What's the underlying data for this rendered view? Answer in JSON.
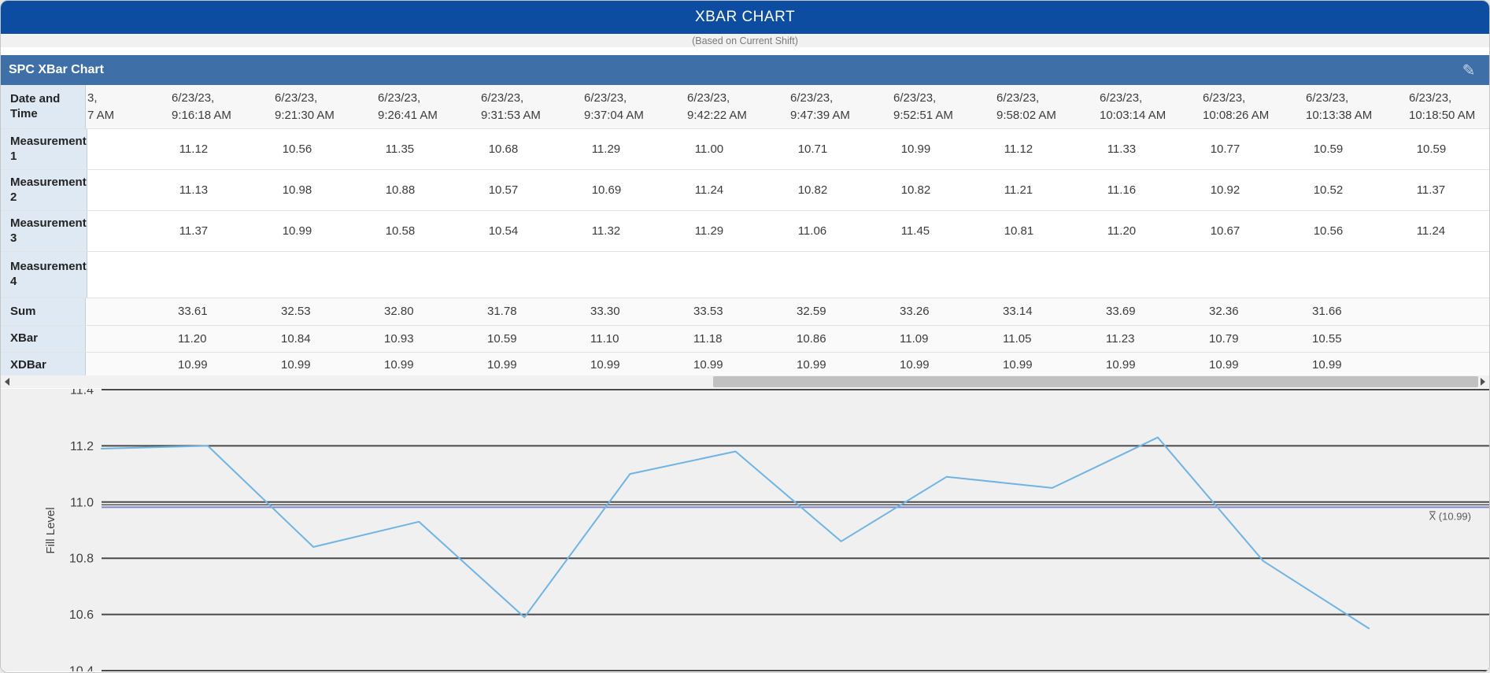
{
  "header": {
    "title": "XBAR CHART",
    "subtitle": "(Based on Current Shift)"
  },
  "panel": {
    "title": "SPC XBar Chart",
    "edit_icon": "pencil-icon",
    "edit_glyph": "✎"
  },
  "table": {
    "row_header_label": "Date and Time",
    "clipped_column": {
      "date_fragment": "3,",
      "time_fragment": "7 AM"
    },
    "columns": [
      {
        "date": "6/23/23,",
        "time": "9:16:18 AM"
      },
      {
        "date": "6/23/23,",
        "time": "9:21:30 AM"
      },
      {
        "date": "6/23/23,",
        "time": "9:26:41 AM"
      },
      {
        "date": "6/23/23,",
        "time": "9:31:53 AM"
      },
      {
        "date": "6/23/23,",
        "time": "9:37:04 AM"
      },
      {
        "date": "6/23/23,",
        "time": "9:42:22 AM"
      },
      {
        "date": "6/23/23,",
        "time": "9:47:39 AM"
      },
      {
        "date": "6/23/23,",
        "time": "9:52:51 AM"
      },
      {
        "date": "6/23/23,",
        "time": "9:58:02 AM"
      },
      {
        "date": "6/23/23,",
        "time": "10:03:14 AM"
      },
      {
        "date": "6/23/23,",
        "time": "10:08:26 AM"
      },
      {
        "date": "6/23/23,",
        "time": "10:13:38 AM"
      },
      {
        "date": "6/23/23,",
        "time": "10:18:50 AM"
      }
    ],
    "rows": [
      {
        "label": "Measurement 1",
        "values": [
          "11.12",
          "10.56",
          "11.35",
          "10.68",
          "11.29",
          "11.00",
          "10.71",
          "10.99",
          "11.12",
          "11.33",
          "10.77",
          "10.59",
          "10.59"
        ]
      },
      {
        "label": "Measurement 2",
        "values": [
          "11.13",
          "10.98",
          "10.88",
          "10.57",
          "10.69",
          "11.24",
          "10.82",
          "10.82",
          "11.21",
          "11.16",
          "10.92",
          "10.52",
          "11.37"
        ]
      },
      {
        "label": "Measurement 3",
        "values": [
          "11.37",
          "10.99",
          "10.58",
          "10.54",
          "11.32",
          "11.29",
          "11.06",
          "11.45",
          "10.81",
          "11.20",
          "10.67",
          "10.56",
          "11.24"
        ]
      },
      {
        "label": "Measurement 4",
        "values": [
          "",
          "",
          "",
          "",
          "",
          "",
          "",
          "",
          "",
          "",
          "",
          "",
          ""
        ]
      },
      {
        "label": "Sum",
        "values": [
          "33.61",
          "32.53",
          "32.80",
          "31.78",
          "33.30",
          "33.53",
          "32.59",
          "33.26",
          "33.14",
          "33.69",
          "32.36",
          "31.66",
          ""
        ]
      },
      {
        "label": "XBar",
        "values": [
          "11.20",
          "10.84",
          "10.93",
          "10.59",
          "11.10",
          "11.18",
          "10.86",
          "11.09",
          "11.05",
          "11.23",
          "10.79",
          "10.55",
          ""
        ]
      },
      {
        "label": "XDBar",
        "values": [
          "10.99",
          "10.99",
          "10.99",
          "10.99",
          "10.99",
          "10.99",
          "10.99",
          "10.99",
          "10.99",
          "10.99",
          "10.99",
          "10.99",
          ""
        ]
      }
    ]
  },
  "chart_data": {
    "type": "line",
    "title": "",
    "xlabel": "",
    "ylabel": "Fill Level",
    "ylim": [
      10.4,
      11.4
    ],
    "yticks": [
      "11.4",
      "11.2",
      "11.0",
      "10.8",
      "10.6",
      "10.4"
    ],
    "ytick_values": [
      11.4,
      11.2,
      11.0,
      10.8,
      10.6,
      10.4
    ],
    "grid": "dark horizontal gridlines at each 0.2",
    "legend_position": "none",
    "series": [
      {
        "name": "XBar",
        "color": "#6fb4e4",
        "values": [
          11.2,
          10.84,
          10.93,
          10.59,
          11.1,
          11.18,
          10.86,
          11.09,
          11.05,
          11.23,
          10.79,
          10.55
        ],
        "x_alignment": "table columns 9:16:18 AM through 10:13:38 AM",
        "edge_start_value": 11.19
      }
    ],
    "centerline": {
      "label": "X̿ (10.99)",
      "value": 10.99,
      "color": "#7b86cb"
    }
  },
  "scrollbar": {
    "orientation": "horizontal",
    "left_arrow": "scroll-left",
    "right_arrow": "scroll-right"
  },
  "colors": {
    "topbar": "#0c4da2",
    "panelbar": "#3e6fa7",
    "label_col_bg": "#dfe9f4",
    "chart_bg": "#f0f0f0",
    "gridline": "#4a4a4a",
    "series_line": "#6fb4e4",
    "centerline": "#7b86cb"
  }
}
